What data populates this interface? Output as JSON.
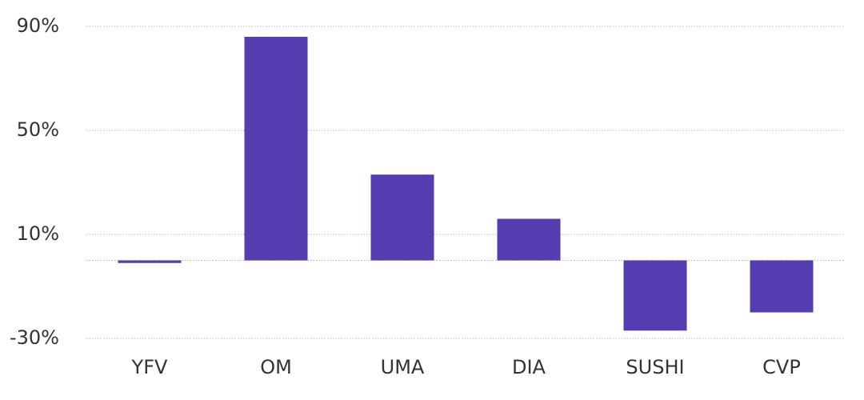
{
  "chart_data": {
    "type": "bar",
    "categories": [
      "YFV",
      "OM",
      "UMA",
      "DIA",
      "SUSHI",
      "CVP"
    ],
    "values": [
      -1,
      86,
      33,
      16,
      -27,
      -20
    ],
    "color": "#553cb0",
    "ylim": [
      -30,
      90
    ],
    "yticks": [
      {
        "value": -30,
        "label": "-30%"
      },
      {
        "value": 10,
        "label": "10%"
      },
      {
        "value": 50,
        "label": "50%"
      },
      {
        "value": 90,
        "label": "90%"
      }
    ],
    "grid": true
  }
}
